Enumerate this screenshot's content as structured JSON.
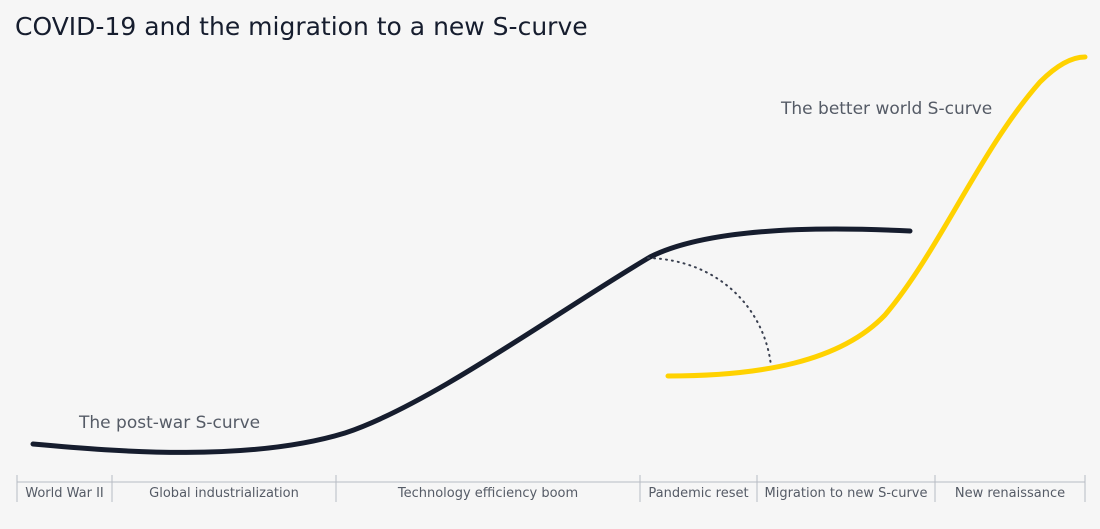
{
  "title": "COVID-19 and the migration to a new S-curve",
  "curves": {
    "post_war": {
      "label": "The post-war S-curve",
      "color": "#161d2e"
    },
    "better_world": {
      "label": "The better world S-curve",
      "color": "#ffd200"
    }
  },
  "timeline": [
    {
      "label": "World War II"
    },
    {
      "label": "Global industrialization"
    },
    {
      "label": "Technology efficiency boom"
    },
    {
      "label": "Pandemic reset"
    },
    {
      "label": "Migration to new S-curve"
    },
    {
      "label": "New renaissance"
    }
  ]
}
